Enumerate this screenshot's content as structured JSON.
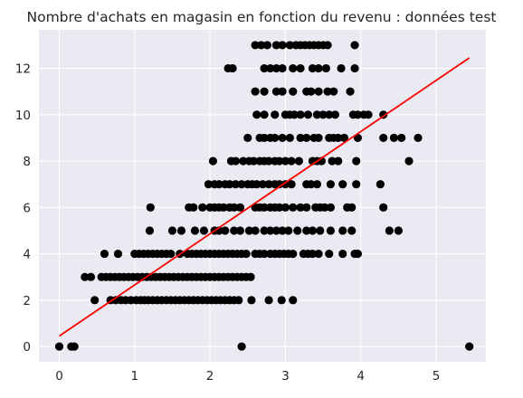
{
  "chart_data": {
    "type": "scatter",
    "title": "Nombre d'achats en magasin en fonction du revenu : données test",
    "xlabel": "",
    "ylabel": "",
    "xlim": [
      -0.27,
      5.66
    ],
    "ylim": [
      -0.66,
      13.66
    ],
    "x_ticks": [
      0,
      1,
      2,
      3,
      4,
      5
    ],
    "y_ticks": [
      0,
      2,
      4,
      6,
      8,
      10,
      12
    ],
    "grid": true,
    "background": "#eaeaf2",
    "point_color": "#000000",
    "line_color": "#ff0000",
    "series": [
      {
        "kind": "points",
        "points": [
          [
            0.0,
            0
          ],
          [
            0.16,
            0
          ],
          [
            0.2,
            0
          ],
          [
            2.42,
            0
          ],
          [
            5.44,
            0
          ],
          [
            0.47,
            2
          ],
          [
            0.68,
            2
          ],
          [
            0.75,
            2
          ],
          [
            0.82,
            2
          ],
          [
            0.88,
            2
          ],
          [
            0.95,
            2
          ],
          [
            1.02,
            2
          ],
          [
            1.08,
            2
          ],
          [
            1.13,
            2
          ],
          [
            1.18,
            2
          ],
          [
            1.24,
            2
          ],
          [
            1.3,
            2
          ],
          [
            1.36,
            2
          ],
          [
            1.42,
            2
          ],
          [
            1.48,
            2
          ],
          [
            1.54,
            2
          ],
          [
            1.6,
            2
          ],
          [
            1.66,
            2
          ],
          [
            1.72,
            2
          ],
          [
            1.78,
            2
          ],
          [
            1.84,
            2
          ],
          [
            1.9,
            2
          ],
          [
            1.96,
            2
          ],
          [
            2.02,
            2
          ],
          [
            2.08,
            2
          ],
          [
            2.14,
            2
          ],
          [
            2.2,
            2
          ],
          [
            2.26,
            2
          ],
          [
            2.32,
            2
          ],
          [
            2.38,
            2
          ],
          [
            2.55,
            2
          ],
          [
            2.78,
            2
          ],
          [
            2.95,
            2
          ],
          [
            3.1,
            2
          ],
          [
            0.34,
            3
          ],
          [
            0.42,
            3
          ],
          [
            0.56,
            3
          ],
          [
            0.62,
            3
          ],
          [
            0.68,
            3
          ],
          [
            0.74,
            3
          ],
          [
            0.8,
            3
          ],
          [
            0.86,
            3
          ],
          [
            0.92,
            3
          ],
          [
            0.98,
            3
          ],
          [
            1.04,
            3
          ],
          [
            1.1,
            3
          ],
          [
            1.16,
            3
          ],
          [
            1.22,
            3
          ],
          [
            1.28,
            3
          ],
          [
            1.34,
            3
          ],
          [
            1.4,
            3
          ],
          [
            1.46,
            3
          ],
          [
            1.52,
            3
          ],
          [
            1.58,
            3
          ],
          [
            1.64,
            3
          ],
          [
            1.7,
            3
          ],
          [
            1.76,
            3
          ],
          [
            1.82,
            3
          ],
          [
            1.88,
            3
          ],
          [
            1.94,
            3
          ],
          [
            2.0,
            3
          ],
          [
            2.06,
            3
          ],
          [
            2.12,
            3
          ],
          [
            2.18,
            3
          ],
          [
            2.24,
            3
          ],
          [
            2.3,
            3
          ],
          [
            2.36,
            3
          ],
          [
            2.42,
            3
          ],
          [
            2.48,
            3
          ],
          [
            2.54,
            3
          ],
          [
            0.6,
            4
          ],
          [
            0.78,
            4
          ],
          [
            1.0,
            4
          ],
          [
            1.06,
            4
          ],
          [
            1.12,
            4
          ],
          [
            1.18,
            4
          ],
          [
            1.24,
            4
          ],
          [
            1.3,
            4
          ],
          [
            1.36,
            4
          ],
          [
            1.42,
            4
          ],
          [
            1.48,
            4
          ],
          [
            1.6,
            4
          ],
          [
            1.7,
            4
          ],
          [
            1.76,
            4
          ],
          [
            1.82,
            4
          ],
          [
            1.88,
            4
          ],
          [
            1.94,
            4
          ],
          [
            2.0,
            4
          ],
          [
            2.06,
            4
          ],
          [
            2.12,
            4
          ],
          [
            2.18,
            4
          ],
          [
            2.24,
            4
          ],
          [
            2.3,
            4
          ],
          [
            2.36,
            4
          ],
          [
            2.42,
            4
          ],
          [
            2.48,
            4
          ],
          [
            2.6,
            4
          ],
          [
            2.66,
            4
          ],
          [
            2.72,
            4
          ],
          [
            2.8,
            4
          ],
          [
            2.86,
            4
          ],
          [
            2.92,
            4
          ],
          [
            2.98,
            4
          ],
          [
            3.04,
            4
          ],
          [
            3.1,
            4
          ],
          [
            3.24,
            4
          ],
          [
            3.3,
            4
          ],
          [
            3.36,
            4
          ],
          [
            3.44,
            4
          ],
          [
            3.58,
            4
          ],
          [
            3.76,
            4
          ],
          [
            3.92,
            4
          ],
          [
            3.96,
            4
          ],
          [
            1.2,
            5
          ],
          [
            1.5,
            5
          ],
          [
            1.62,
            5
          ],
          [
            1.8,
            5
          ],
          [
            1.92,
            5
          ],
          [
            2.06,
            5
          ],
          [
            2.12,
            5
          ],
          [
            2.2,
            5
          ],
          [
            2.32,
            5
          ],
          [
            2.4,
            5
          ],
          [
            2.52,
            5
          ],
          [
            2.6,
            5
          ],
          [
            2.72,
            5
          ],
          [
            2.8,
            5
          ],
          [
            2.88,
            5
          ],
          [
            2.96,
            5
          ],
          [
            3.04,
            5
          ],
          [
            3.16,
            5
          ],
          [
            3.28,
            5
          ],
          [
            3.36,
            5
          ],
          [
            3.46,
            5
          ],
          [
            3.6,
            5
          ],
          [
            3.76,
            5
          ],
          [
            3.88,
            5
          ],
          [
            4.38,
            5
          ],
          [
            4.5,
            5
          ],
          [
            1.21,
            6
          ],
          [
            1.72,
            6
          ],
          [
            1.78,
            6
          ],
          [
            1.9,
            6
          ],
          [
            2.0,
            6
          ],
          [
            2.06,
            6
          ],
          [
            2.12,
            6
          ],
          [
            2.18,
            6
          ],
          [
            2.26,
            6
          ],
          [
            2.32,
            6
          ],
          [
            2.4,
            6
          ],
          [
            2.6,
            6
          ],
          [
            2.66,
            6
          ],
          [
            2.72,
            6
          ],
          [
            2.8,
            6
          ],
          [
            2.86,
            6
          ],
          [
            2.92,
            6
          ],
          [
            3.0,
            6
          ],
          [
            3.1,
            6
          ],
          [
            3.2,
            6
          ],
          [
            3.28,
            6
          ],
          [
            3.4,
            6
          ],
          [
            3.46,
            6
          ],
          [
            3.52,
            6
          ],
          [
            3.6,
            6
          ],
          [
            3.82,
            6
          ],
          [
            3.88,
            6
          ],
          [
            4.3,
            6
          ],
          [
            1.98,
            7
          ],
          [
            2.06,
            7
          ],
          [
            2.12,
            7
          ],
          [
            2.2,
            7
          ],
          [
            2.26,
            7
          ],
          [
            2.34,
            7
          ],
          [
            2.42,
            7
          ],
          [
            2.5,
            7
          ],
          [
            2.56,
            7
          ],
          [
            2.62,
            7
          ],
          [
            2.7,
            7
          ],
          [
            2.78,
            7
          ],
          [
            2.86,
            7
          ],
          [
            2.92,
            7
          ],
          [
            3.0,
            7
          ],
          [
            3.08,
            7
          ],
          [
            3.28,
            7
          ],
          [
            3.34,
            7
          ],
          [
            3.42,
            7
          ],
          [
            3.6,
            7
          ],
          [
            3.76,
            7
          ],
          [
            3.94,
            7
          ],
          [
            4.26,
            7
          ],
          [
            2.04,
            8
          ],
          [
            2.28,
            8
          ],
          [
            2.34,
            8
          ],
          [
            2.44,
            8
          ],
          [
            2.52,
            8
          ],
          [
            2.58,
            8
          ],
          [
            2.66,
            8
          ],
          [
            2.72,
            8
          ],
          [
            2.78,
            8
          ],
          [
            2.86,
            8
          ],
          [
            2.92,
            8
          ],
          [
            3.0,
            8
          ],
          [
            3.08,
            8
          ],
          [
            3.18,
            8
          ],
          [
            3.36,
            8
          ],
          [
            3.42,
            8
          ],
          [
            3.48,
            8
          ],
          [
            3.62,
            8
          ],
          [
            3.7,
            8
          ],
          [
            3.94,
            8
          ],
          [
            4.64,
            8
          ],
          [
            2.5,
            9
          ],
          [
            2.66,
            9
          ],
          [
            2.72,
            9
          ],
          [
            2.8,
            9
          ],
          [
            2.86,
            9
          ],
          [
            2.96,
            9
          ],
          [
            3.06,
            9
          ],
          [
            3.2,
            9
          ],
          [
            3.28,
            9
          ],
          [
            3.38,
            9
          ],
          [
            3.44,
            9
          ],
          [
            3.58,
            9
          ],
          [
            3.64,
            9
          ],
          [
            3.7,
            9
          ],
          [
            3.78,
            9
          ],
          [
            3.96,
            9
          ],
          [
            4.3,
            9
          ],
          [
            4.44,
            9
          ],
          [
            4.54,
            9
          ],
          [
            4.76,
            9
          ],
          [
            2.62,
            10
          ],
          [
            2.72,
            10
          ],
          [
            2.86,
            10
          ],
          [
            3.0,
            10
          ],
          [
            3.06,
            10
          ],
          [
            3.12,
            10
          ],
          [
            3.2,
            10
          ],
          [
            3.3,
            10
          ],
          [
            3.42,
            10
          ],
          [
            3.5,
            10
          ],
          [
            3.58,
            10
          ],
          [
            3.66,
            10
          ],
          [
            3.9,
            10
          ],
          [
            3.96,
            10
          ],
          [
            4.04,
            10
          ],
          [
            4.1,
            10
          ],
          [
            4.3,
            10
          ],
          [
            2.6,
            11
          ],
          [
            2.72,
            11
          ],
          [
            2.88,
            11
          ],
          [
            2.96,
            11
          ],
          [
            3.1,
            11
          ],
          [
            3.28,
            11
          ],
          [
            3.34,
            11
          ],
          [
            3.44,
            11
          ],
          [
            3.56,
            11
          ],
          [
            3.64,
            11
          ],
          [
            3.86,
            11
          ],
          [
            2.24,
            12
          ],
          [
            2.3,
            12
          ],
          [
            2.72,
            12
          ],
          [
            2.8,
            12
          ],
          [
            2.88,
            12
          ],
          [
            2.96,
            12
          ],
          [
            3.1,
            12
          ],
          [
            3.2,
            12
          ],
          [
            3.36,
            12
          ],
          [
            3.44,
            12
          ],
          [
            3.54,
            12
          ],
          [
            3.74,
            12
          ],
          [
            3.92,
            12
          ],
          [
            2.6,
            13
          ],
          [
            2.68,
            13
          ],
          [
            2.76,
            13
          ],
          [
            2.88,
            13
          ],
          [
            2.96,
            13
          ],
          [
            3.06,
            13
          ],
          [
            3.14,
            13
          ],
          [
            3.2,
            13
          ],
          [
            3.26,
            13
          ],
          [
            3.32,
            13
          ],
          [
            3.38,
            13
          ],
          [
            3.44,
            13
          ],
          [
            3.5,
            13
          ],
          [
            3.56,
            13
          ],
          [
            3.92,
            13
          ]
        ]
      },
      {
        "kind": "regression-line",
        "points": [
          [
            0.0,
            0.45
          ],
          [
            5.44,
            12.45
          ]
        ]
      }
    ]
  }
}
